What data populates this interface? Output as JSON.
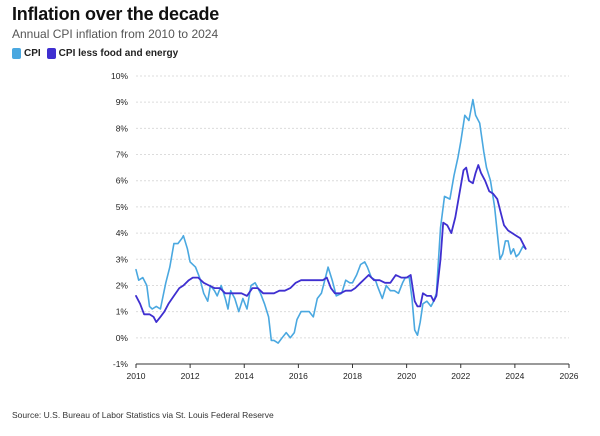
{
  "header": {
    "title": "Inflation over the decade",
    "subtitle": "Annual CPI inflation from 2010 to 2024"
  },
  "source": "Source: U.S. Bureau of Labor Statistics via St. Louis Federal Reserve",
  "chart_data": {
    "type": "line",
    "title": "Inflation over the decade",
    "subtitle": "Annual CPI inflation from 2010 to 2024",
    "xlabel": "",
    "ylabel": "",
    "xlim": [
      2010,
      2026
    ],
    "ylim": [
      -1,
      10
    ],
    "x_ticks": [
      2010,
      2012,
      2014,
      2016,
      2018,
      2020,
      2022,
      2024,
      2026
    ],
    "x_tick_labels": [
      "2010",
      "2012",
      "2014",
      "2016",
      "2018",
      "2020",
      "2022",
      "2024",
      "2026"
    ],
    "y_ticks": [
      -1,
      0,
      1,
      2,
      3,
      4,
      5,
      6,
      7,
      8,
      9,
      10
    ],
    "y_tick_labels": [
      "-1%",
      "0%",
      "1%",
      "2%",
      "3%",
      "4%",
      "5%",
      "6%",
      "7%",
      "8%",
      "9%",
      "10%"
    ],
    "grid": "horizontal",
    "legend_position": "top-left",
    "series": [
      {
        "name": "CPI",
        "color": "#4aa8e0",
        "points": [
          [
            2010.0,
            2.6
          ],
          [
            2010.1,
            2.2
          ],
          [
            2010.25,
            2.3
          ],
          [
            2010.4,
            2.0
          ],
          [
            2010.5,
            1.2
          ],
          [
            2010.6,
            1.1
          ],
          [
            2010.75,
            1.2
          ],
          [
            2010.9,
            1.1
          ],
          [
            2011.0,
            1.6
          ],
          [
            2011.1,
            2.1
          ],
          [
            2011.25,
            2.7
          ],
          [
            2011.4,
            3.6
          ],
          [
            2011.55,
            3.6
          ],
          [
            2011.7,
            3.8
          ],
          [
            2011.75,
            3.9
          ],
          [
            2011.9,
            3.4
          ],
          [
            2012.0,
            2.9
          ],
          [
            2012.2,
            2.7
          ],
          [
            2012.35,
            2.3
          ],
          [
            2012.5,
            1.7
          ],
          [
            2012.65,
            1.4
          ],
          [
            2012.75,
            2.0
          ],
          [
            2012.9,
            1.8
          ],
          [
            2013.0,
            1.6
          ],
          [
            2013.15,
            2.0
          ],
          [
            2013.3,
            1.5
          ],
          [
            2013.4,
            1.1
          ],
          [
            2013.5,
            1.8
          ],
          [
            2013.65,
            1.5
          ],
          [
            2013.8,
            1.0
          ],
          [
            2013.95,
            1.5
          ],
          [
            2014.1,
            1.1
          ],
          [
            2014.25,
            2.0
          ],
          [
            2014.4,
            2.1
          ],
          [
            2014.6,
            1.7
          ],
          [
            2014.75,
            1.3
          ],
          [
            2014.9,
            0.8
          ],
          [
            2015.0,
            -0.1
          ],
          [
            2015.1,
            -0.1
          ],
          [
            2015.25,
            -0.2
          ],
          [
            2015.4,
            0.0
          ],
          [
            2015.55,
            0.2
          ],
          [
            2015.7,
            0.0
          ],
          [
            2015.85,
            0.2
          ],
          [
            2015.95,
            0.7
          ],
          [
            2016.1,
            1.0
          ],
          [
            2016.25,
            1.0
          ],
          [
            2016.4,
            1.0
          ],
          [
            2016.55,
            0.8
          ],
          [
            2016.7,
            1.5
          ],
          [
            2016.85,
            1.7
          ],
          [
            2016.95,
            2.1
          ],
          [
            2017.1,
            2.7
          ],
          [
            2017.25,
            2.2
          ],
          [
            2017.4,
            1.6
          ],
          [
            2017.6,
            1.7
          ],
          [
            2017.75,
            2.2
          ],
          [
            2017.9,
            2.1
          ],
          [
            2018.0,
            2.1
          ],
          [
            2018.15,
            2.4
          ],
          [
            2018.3,
            2.8
          ],
          [
            2018.45,
            2.9
          ],
          [
            2018.55,
            2.7
          ],
          [
            2018.7,
            2.3
          ],
          [
            2018.85,
            2.2
          ],
          [
            2018.95,
            1.9
          ],
          [
            2019.1,
            1.5
          ],
          [
            2019.25,
            2.0
          ],
          [
            2019.4,
            1.8
          ],
          [
            2019.55,
            1.8
          ],
          [
            2019.7,
            1.7
          ],
          [
            2019.85,
            2.1
          ],
          [
            2019.95,
            2.3
          ],
          [
            2020.1,
            2.3
          ],
          [
            2020.2,
            1.5
          ],
          [
            2020.3,
            0.3
          ],
          [
            2020.4,
            0.1
          ],
          [
            2020.5,
            0.6
          ],
          [
            2020.6,
            1.3
          ],
          [
            2020.75,
            1.4
          ],
          [
            2020.9,
            1.2
          ],
          [
            2021.0,
            1.4
          ],
          [
            2021.1,
            1.7
          ],
          [
            2021.25,
            4.2
          ],
          [
            2021.4,
            5.4
          ],
          [
            2021.6,
            5.3
          ],
          [
            2021.75,
            6.2
          ],
          [
            2021.9,
            6.9
          ],
          [
            2022.0,
            7.5
          ],
          [
            2022.15,
            8.5
          ],
          [
            2022.3,
            8.3
          ],
          [
            2022.45,
            9.1
          ],
          [
            2022.55,
            8.5
          ],
          [
            2022.7,
            8.2
          ],
          [
            2022.85,
            7.1
          ],
          [
            2022.95,
            6.5
          ],
          [
            2023.1,
            6.0
          ],
          [
            2023.25,
            5.0
          ],
          [
            2023.35,
            4.0
          ],
          [
            2023.45,
            3.0
          ],
          [
            2023.55,
            3.2
          ],
          [
            2023.65,
            3.7
          ],
          [
            2023.75,
            3.7
          ],
          [
            2023.85,
            3.2
          ],
          [
            2023.95,
            3.4
          ],
          [
            2024.05,
            3.1
          ],
          [
            2024.15,
            3.2
          ],
          [
            2024.3,
            3.5
          ],
          [
            2024.4,
            3.4
          ]
        ]
      },
      {
        "name": "CPI less food and energy",
        "color": "#3f2fd0",
        "points": [
          [
            2010.0,
            1.6
          ],
          [
            2010.15,
            1.3
          ],
          [
            2010.3,
            0.9
          ],
          [
            2010.5,
            0.9
          ],
          [
            2010.65,
            0.8
          ],
          [
            2010.75,
            0.6
          ],
          [
            2010.9,
            0.8
          ],
          [
            2011.05,
            1.0
          ],
          [
            2011.2,
            1.3
          ],
          [
            2011.4,
            1.6
          ],
          [
            2011.6,
            1.9
          ],
          [
            2011.75,
            2.0
          ],
          [
            2011.95,
            2.2
          ],
          [
            2012.1,
            2.3
          ],
          [
            2012.3,
            2.3
          ],
          [
            2012.5,
            2.1
          ],
          [
            2012.7,
            2.0
          ],
          [
            2012.9,
            1.9
          ],
          [
            2013.1,
            1.9
          ],
          [
            2013.3,
            1.7
          ],
          [
            2013.5,
            1.7
          ],
          [
            2013.7,
            1.7
          ],
          [
            2013.9,
            1.7
          ],
          [
            2014.1,
            1.6
          ],
          [
            2014.3,
            1.9
          ],
          [
            2014.5,
            1.9
          ],
          [
            2014.7,
            1.7
          ],
          [
            2014.9,
            1.7
          ],
          [
            2015.1,
            1.7
          ],
          [
            2015.3,
            1.8
          ],
          [
            2015.5,
            1.8
          ],
          [
            2015.7,
            1.9
          ],
          [
            2015.9,
            2.1
          ],
          [
            2016.1,
            2.2
          ],
          [
            2016.3,
            2.2
          ],
          [
            2016.5,
            2.2
          ],
          [
            2016.7,
            2.2
          ],
          [
            2016.9,
            2.2
          ],
          [
            2017.05,
            2.3
          ],
          [
            2017.2,
            1.9
          ],
          [
            2017.35,
            1.7
          ],
          [
            2017.55,
            1.7
          ],
          [
            2017.75,
            1.8
          ],
          [
            2017.95,
            1.8
          ],
          [
            2018.1,
            1.9
          ],
          [
            2018.3,
            2.1
          ],
          [
            2018.5,
            2.3
          ],
          [
            2018.6,
            2.4
          ],
          [
            2018.8,
            2.2
          ],
          [
            2019.0,
            2.2
          ],
          [
            2019.2,
            2.1
          ],
          [
            2019.4,
            2.1
          ],
          [
            2019.6,
            2.4
          ],
          [
            2019.8,
            2.3
          ],
          [
            2020.0,
            2.3
          ],
          [
            2020.15,
            2.4
          ],
          [
            2020.3,
            1.4
          ],
          [
            2020.4,
            1.2
          ],
          [
            2020.5,
            1.2
          ],
          [
            2020.6,
            1.7
          ],
          [
            2020.75,
            1.6
          ],
          [
            2020.9,
            1.6
          ],
          [
            2021.0,
            1.4
          ],
          [
            2021.1,
            1.6
          ],
          [
            2021.25,
            3.0
          ],
          [
            2021.35,
            4.4
          ],
          [
            2021.5,
            4.3
          ],
          [
            2021.65,
            4.0
          ],
          [
            2021.8,
            4.6
          ],
          [
            2021.95,
            5.5
          ],
          [
            2022.1,
            6.4
          ],
          [
            2022.2,
            6.5
          ],
          [
            2022.3,
            6.0
          ],
          [
            2022.45,
            5.9
          ],
          [
            2022.55,
            6.3
          ],
          [
            2022.65,
            6.6
          ],
          [
            2022.75,
            6.3
          ],
          [
            2022.9,
            6.0
          ],
          [
            2023.05,
            5.6
          ],
          [
            2023.2,
            5.5
          ],
          [
            2023.35,
            5.3
          ],
          [
            2023.5,
            4.7
          ],
          [
            2023.6,
            4.3
          ],
          [
            2023.75,
            4.1
          ],
          [
            2023.9,
            4.0
          ],
          [
            2024.05,
            3.9
          ],
          [
            2024.2,
            3.8
          ],
          [
            2024.3,
            3.6
          ],
          [
            2024.4,
            3.4
          ]
        ]
      }
    ]
  }
}
